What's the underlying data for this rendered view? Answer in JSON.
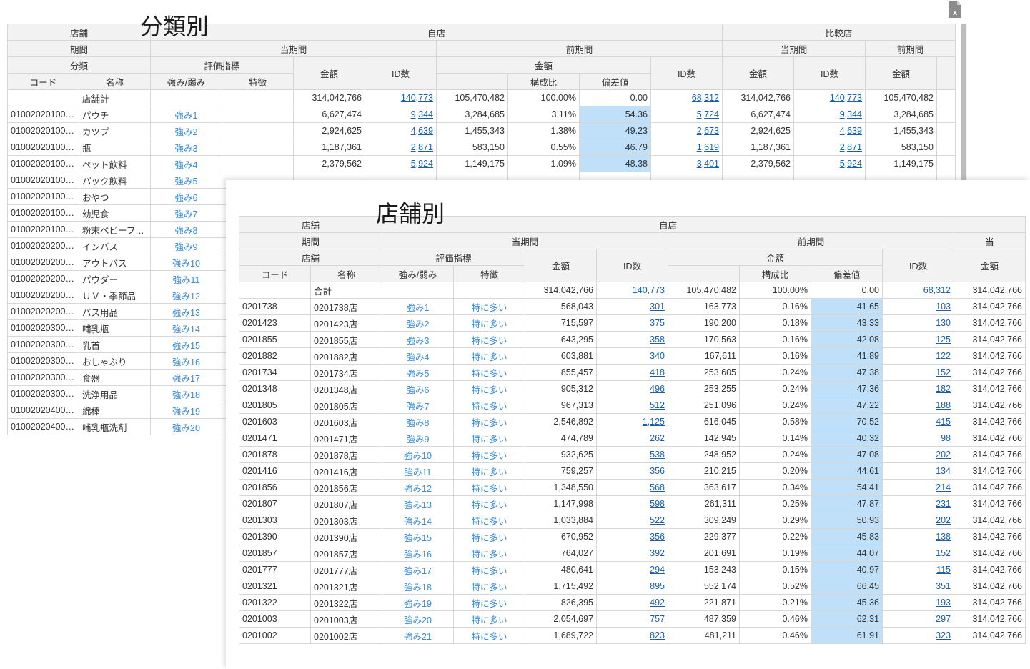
{
  "panel1": {
    "title": "分類別",
    "excel_icon": "excel-export-icon",
    "header": {
      "r1": [
        "店舗",
        "自店",
        "比較店"
      ],
      "r2": [
        "期間",
        "当期間",
        "前期間",
        "当期間",
        "前期間"
      ],
      "r3": [
        "分類",
        "評価指標",
        "金額",
        "ID数",
        "金額",
        "ID数",
        "金額",
        "ID数",
        "金額"
      ],
      "r4": [
        "コード",
        "名称",
        "強み/弱み",
        "特徴",
        "構成比",
        "偏差値"
      ]
    },
    "total_row": {
      "name": "店舗計",
      "amount": "314,042,766",
      "ids": "140,773",
      "prev_amount": "105,470,482",
      "ratio": "100.00%",
      "dev": "0.00",
      "prev_ids": "68,312",
      "cmp_amount": "314,042,766",
      "cmp_ids": "140,773",
      "cmp_prev_amount": "105,470,482"
    },
    "rows": [
      {
        "code": "01002020100…",
        "name": "パウチ",
        "sw": "強み1",
        "amount": "6,627,474",
        "ids": "9,344",
        "prev_amount": "3,284,685",
        "ratio": "3.11%",
        "dev": "54.36",
        "prev_ids": "5,724",
        "cmp_amount": "6,627,474",
        "cmp_ids": "9,344",
        "cmp_prev_amount": "3,284,685"
      },
      {
        "code": "01002020100…",
        "name": "カツプ",
        "sw": "強み2",
        "amount": "2,924,625",
        "ids": "4,639",
        "prev_amount": "1,455,343",
        "ratio": "1.38%",
        "dev": "49.23",
        "prev_ids": "2,673",
        "cmp_amount": "2,924,625",
        "cmp_ids": "4,639",
        "cmp_prev_amount": "1,455,343"
      },
      {
        "code": "01002020100…",
        "name": "瓶",
        "sw": "強み3",
        "amount": "1,187,361",
        "ids": "2,871",
        "prev_amount": "583,150",
        "ratio": "0.55%",
        "dev": "46.79",
        "prev_ids": "1,619",
        "cmp_amount": "1,187,361",
        "cmp_ids": "2,871",
        "cmp_prev_amount": "583,150"
      },
      {
        "code": "01002020100…",
        "name": "ペット飲料",
        "sw": "強み4",
        "amount": "2,379,562",
        "ids": "5,924",
        "prev_amount": "1,149,175",
        "ratio": "1.09%",
        "dev": "48.38",
        "prev_ids": "3,401",
        "cmp_amount": "2,379,562",
        "cmp_ids": "5,924",
        "cmp_prev_amount": "1,149,175"
      },
      {
        "code": "01002020100…",
        "name": "パック飲料",
        "sw": "強み5"
      },
      {
        "code": "01002020100…",
        "name": "おやつ",
        "sw": "強み6"
      },
      {
        "code": "01002020100…",
        "name": "幼児食",
        "sw": "強み7"
      },
      {
        "code": "01002020100…",
        "name": "粉末ベビーフ…",
        "sw": "強み8"
      },
      {
        "code": "01002020200…",
        "name": "インバス",
        "sw": "強み9"
      },
      {
        "code": "01002020200…",
        "name": "アウトバス",
        "sw": "強み10"
      },
      {
        "code": "01002020200…",
        "name": "パウダー",
        "sw": "強み11"
      },
      {
        "code": "01002020200…",
        "name": "ＵＶ・季節品",
        "sw": "強み12"
      },
      {
        "code": "01002020200…",
        "name": "バス用品",
        "sw": "強み13"
      },
      {
        "code": "01002020300…",
        "name": "哺乳瓶",
        "sw": "強み14"
      },
      {
        "code": "01002020300…",
        "name": "乳首",
        "sw": "強み15"
      },
      {
        "code": "01002020300…",
        "name": "おしゃぶり",
        "sw": "強み16"
      },
      {
        "code": "01002020300…",
        "name": "食器",
        "sw": "強み17"
      },
      {
        "code": "01002020300…",
        "name": "洗浄用品",
        "sw": "強み18"
      },
      {
        "code": "01002020400…",
        "name": "綿棒",
        "sw": "強み19"
      },
      {
        "code": "01002020400…",
        "name": "哺乳瓶洗剤",
        "sw": "強み20"
      }
    ]
  },
  "panel2": {
    "title": "店舗別",
    "header": {
      "r1": [
        "店舗",
        "自店",
        ""
      ],
      "r2": [
        "期間",
        "当期間",
        "前期間",
        "当"
      ],
      "r3": [
        "店舗",
        "評価指標",
        "金額",
        "ID数",
        "金額",
        "ID数",
        "金額"
      ],
      "r4": [
        "コード",
        "名称",
        "強み/弱み",
        "特徴",
        "構成比",
        "偏差値"
      ]
    },
    "total_row": {
      "name": "合計",
      "amount": "314,042,766",
      "ids": "140,773",
      "prev_amount": "105,470,482",
      "ratio": "100.00%",
      "dev": "0.00",
      "prev_ids": "68,312",
      "cmp_amount": "314,042,766"
    },
    "rows": [
      {
        "code": "0201738",
        "name": "0201738店",
        "sw": "強み1",
        "feat": "特に多い",
        "amount": "568,043",
        "ids": "301",
        "prev_amount": "163,773",
        "ratio": "0.16%",
        "dev": "41.65",
        "prev_ids": "103",
        "cmp_amount": "314,042,766"
      },
      {
        "code": "0201423",
        "name": "0201423店",
        "sw": "強み2",
        "feat": "特に多い",
        "amount": "715,597",
        "ids": "375",
        "prev_amount": "190,200",
        "ratio": "0.18%",
        "dev": "43.33",
        "prev_ids": "130",
        "cmp_amount": "314,042,766"
      },
      {
        "code": "0201855",
        "name": "0201855店",
        "sw": "強み3",
        "feat": "特に多い",
        "amount": "643,295",
        "ids": "358",
        "prev_amount": "170,563",
        "ratio": "0.16%",
        "dev": "42.08",
        "prev_ids": "125",
        "cmp_amount": "314,042,766"
      },
      {
        "code": "0201882",
        "name": "0201882店",
        "sw": "強み4",
        "feat": "特に多い",
        "amount": "603,881",
        "ids": "340",
        "prev_amount": "167,611",
        "ratio": "0.16%",
        "dev": "41.89",
        "prev_ids": "122",
        "cmp_amount": "314,042,766"
      },
      {
        "code": "0201734",
        "name": "0201734店",
        "sw": "強み5",
        "feat": "特に多い",
        "amount": "855,457",
        "ids": "418",
        "prev_amount": "253,605",
        "ratio": "0.24%",
        "dev": "47.38",
        "prev_ids": "152",
        "cmp_amount": "314,042,766"
      },
      {
        "code": "0201348",
        "name": "0201348店",
        "sw": "強み6",
        "feat": "特に多い",
        "amount": "905,312",
        "ids": "496",
        "prev_amount": "253,255",
        "ratio": "0.24%",
        "dev": "47.36",
        "prev_ids": "182",
        "cmp_amount": "314,042,766"
      },
      {
        "code": "0201805",
        "name": "0201805店",
        "sw": "強み7",
        "feat": "特に多い",
        "amount": "967,313",
        "ids": "512",
        "prev_amount": "251,096",
        "ratio": "0.24%",
        "dev": "47.22",
        "prev_ids": "188",
        "cmp_amount": "314,042,766"
      },
      {
        "code": "0201603",
        "name": "0201603店",
        "sw": "強み8",
        "feat": "特に多い",
        "amount": "2,546,892",
        "ids": "1,125",
        "prev_amount": "616,045",
        "ratio": "0.58%",
        "dev": "70.52",
        "prev_ids": "415",
        "cmp_amount": "314,042,766"
      },
      {
        "code": "0201471",
        "name": "0201471店",
        "sw": "強み9",
        "feat": "特に多い",
        "amount": "474,789",
        "ids": "262",
        "prev_amount": "142,945",
        "ratio": "0.14%",
        "dev": "40.32",
        "prev_ids": "98",
        "cmp_amount": "314,042,766"
      },
      {
        "code": "0201878",
        "name": "0201878店",
        "sw": "強み10",
        "feat": "特に多い",
        "amount": "932,625",
        "ids": "538",
        "prev_amount": "248,952",
        "ratio": "0.24%",
        "dev": "47.08",
        "prev_ids": "202",
        "cmp_amount": "314,042,766"
      },
      {
        "code": "0201416",
        "name": "0201416店",
        "sw": "強み11",
        "feat": "特に多い",
        "amount": "759,257",
        "ids": "356",
        "prev_amount": "210,215",
        "ratio": "0.20%",
        "dev": "44.61",
        "prev_ids": "134",
        "cmp_amount": "314,042,766"
      },
      {
        "code": "0201856",
        "name": "0201856店",
        "sw": "強み12",
        "feat": "特に多い",
        "amount": "1,348,550",
        "ids": "568",
        "prev_amount": "363,617",
        "ratio": "0.34%",
        "dev": "54.41",
        "prev_ids": "214",
        "cmp_amount": "314,042,766"
      },
      {
        "code": "0201807",
        "name": "0201807店",
        "sw": "強み13",
        "feat": "特に多い",
        "amount": "1,147,998",
        "ids": "598",
        "prev_amount": "261,311",
        "ratio": "0.25%",
        "dev": "47.87",
        "prev_ids": "231",
        "cmp_amount": "314,042,766"
      },
      {
        "code": "0201303",
        "name": "0201303店",
        "sw": "強み14",
        "feat": "特に多い",
        "amount": "1,033,884",
        "ids": "522",
        "prev_amount": "309,249",
        "ratio": "0.29%",
        "dev": "50.93",
        "prev_ids": "202",
        "cmp_amount": "314,042,766"
      },
      {
        "code": "0201390",
        "name": "0201390店",
        "sw": "強み15",
        "feat": "特に多い",
        "amount": "670,952",
        "ids": "356",
        "prev_amount": "229,377",
        "ratio": "0.22%",
        "dev": "45.83",
        "prev_ids": "138",
        "cmp_amount": "314,042,766"
      },
      {
        "code": "0201857",
        "name": "0201857店",
        "sw": "強み16",
        "feat": "特に多い",
        "amount": "764,027",
        "ids": "392",
        "prev_amount": "201,691",
        "ratio": "0.19%",
        "dev": "44.07",
        "prev_ids": "152",
        "cmp_amount": "314,042,766"
      },
      {
        "code": "0201777",
        "name": "0201777店",
        "sw": "強み17",
        "feat": "特に多い",
        "amount": "480,641",
        "ids": "294",
        "prev_amount": "153,243",
        "ratio": "0.15%",
        "dev": "40.97",
        "prev_ids": "115",
        "cmp_amount": "314,042,766"
      },
      {
        "code": "0201321",
        "name": "0201321店",
        "sw": "強み18",
        "feat": "特に多い",
        "amount": "1,715,492",
        "ids": "895",
        "prev_amount": "552,174",
        "ratio": "0.52%",
        "dev": "66.45",
        "prev_ids": "351",
        "cmp_amount": "314,042,766"
      },
      {
        "code": "0201322",
        "name": "0201322店",
        "sw": "強み19",
        "feat": "特に多い",
        "amount": "826,395",
        "ids": "492",
        "prev_amount": "221,871",
        "ratio": "0.21%",
        "dev": "45.36",
        "prev_ids": "193",
        "cmp_amount": "314,042,766"
      },
      {
        "code": "0201003",
        "name": "0201003店",
        "sw": "強み20",
        "feat": "特に多い",
        "amount": "2,054,697",
        "ids": "757",
        "prev_amount": "487,359",
        "ratio": "0.46%",
        "dev": "62.31",
        "prev_ids": "297",
        "cmp_amount": "314,042,766"
      },
      {
        "code": "0201002",
        "name": "0201002店",
        "sw": "強み21",
        "feat": "特に多い",
        "amount": "1,689,722",
        "ids": "823",
        "prev_amount": "481,211",
        "ratio": "0.46%",
        "dev": "61.91",
        "prev_ids": "323",
        "cmp_amount": "314,042,766"
      }
    ]
  },
  "colors": {
    "highlight": "#bfe0f8",
    "link": "#1a5fa8",
    "strength": "#3a8ad6",
    "header_bg": "#f2f2f2"
  }
}
